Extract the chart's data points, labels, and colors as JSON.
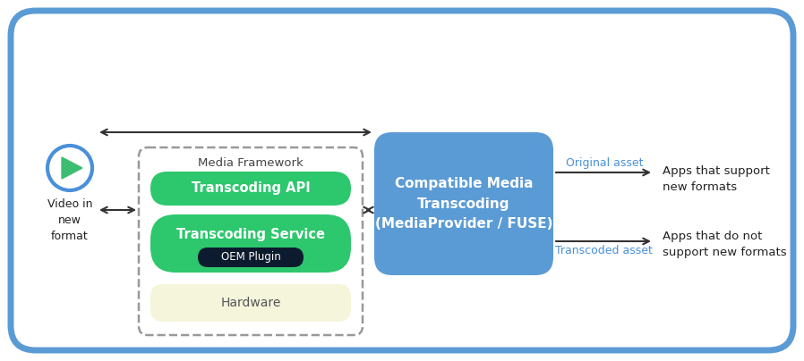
{
  "bg_color": "#ffffff",
  "outer_border_color": "#5B9BD5",
  "play_icon_color": "#4A90D9",
  "play_icon_fill": "#3DBD72",
  "video_label": "Video in\nnew\nformat",
  "media_framework_label": "Media Framework",
  "media_framework_border": "#999999",
  "transcoding_api_color": "#2DC76D",
  "transcoding_api_label": "Transcoding API",
  "transcoding_service_color": "#2DC76D",
  "transcoding_service_label": "Transcoding Service",
  "oem_plugin_color": "#0D1B2E",
  "oem_plugin_label": "OEM Plugin",
  "hardware_color": "#F5F5DC",
  "hardware_label": "Hardware",
  "cmt_box_color": "#5B9BD5",
  "cmt_label": "Compatible Media\nTranscoding\n(MediaProvider / FUSE)",
  "original_asset_label": "Original asset",
  "transcoded_asset_label": "Transcoded asset",
  "asset_label_color": "#4A90D9",
  "apps_support_label": "Apps that support\nnew formats",
  "apps_no_support_label": "Apps that do not\nsupport new formats",
  "apps_label_color": "#222222",
  "arrow_color": "#333333"
}
